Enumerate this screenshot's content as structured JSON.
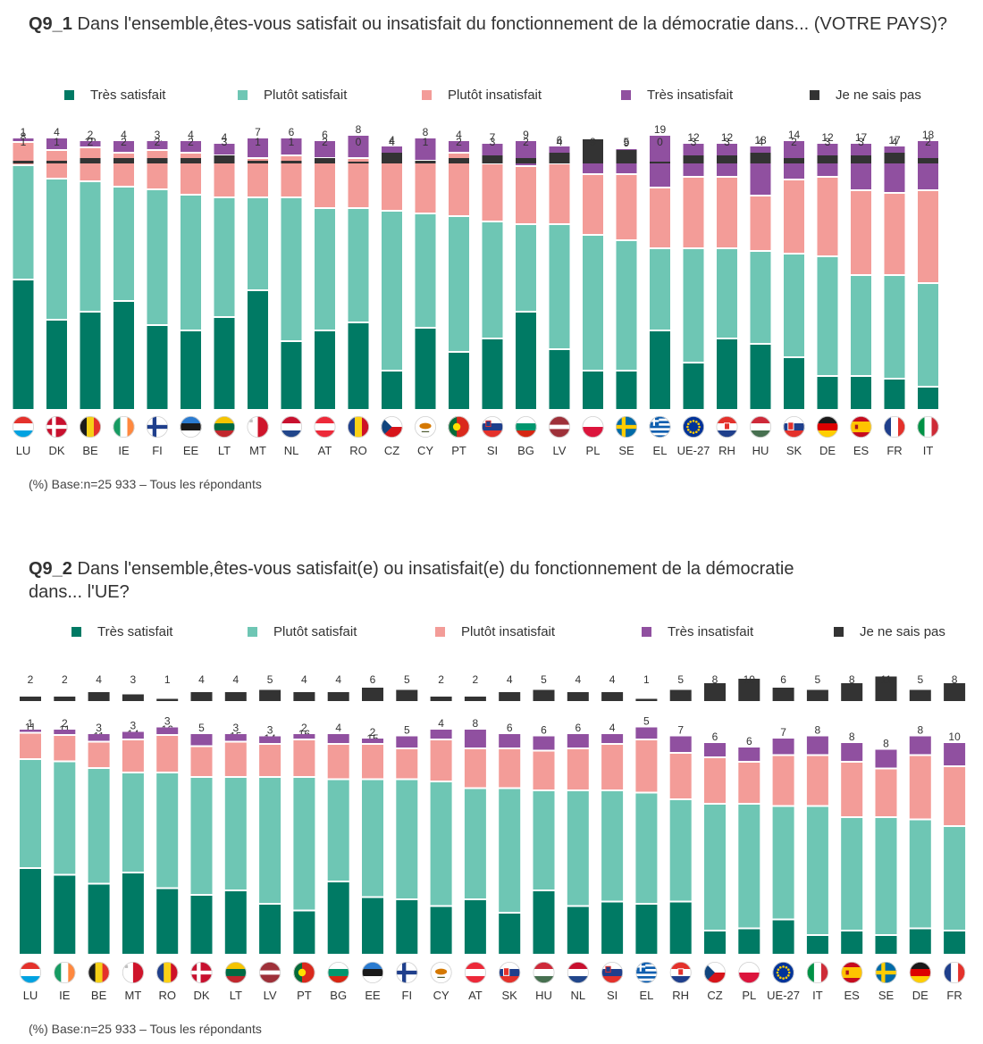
{
  "colors": {
    "tres_satisfait": "#007a64",
    "plutot_satisfait": "#6ec6b4",
    "plutot_insatisfait": "#f39c98",
    "tres_insatisfait": "#9050a0",
    "ne_sais_pas": "#333333"
  },
  "legend": [
    "Très satisfait",
    "Plutôt satisfait",
    "Plutôt insatisfait",
    "Très insatisfait",
    "Je ne sais pas"
  ],
  "chart_data": [
    {
      "type": "bar",
      "stacked": true,
      "title_code": "Q9_1",
      "title": "Dans l'ensemble,êtes-vous satisfait ou insatisfait du fonctionnement de la démocratie dans... (VOTRE PAYS)?",
      "note": "(%) Base:n=25 933 – Tous les répondants",
      "categories": [
        "LU",
        "DK",
        "BE",
        "IE",
        "FI",
        "EE",
        "LT",
        "MT",
        "NL",
        "AT",
        "RO",
        "CZ",
        "CY",
        "PT",
        "SI",
        "BG",
        "LV",
        "PL",
        "SE",
        "EL",
        "UE-27",
        "RH",
        "HU",
        "SK",
        "DE",
        "ES",
        "FR",
        "IT"
      ],
      "series": [
        {
          "name": "Très satisfait",
          "values": [
            48,
            33,
            36,
            40,
            31,
            29,
            34,
            44,
            25,
            29,
            32,
            14,
            30,
            21,
            26,
            36,
            22,
            14,
            14,
            29,
            17,
            26,
            24,
            19,
            12,
            12,
            11,
            8
          ]
        },
        {
          "name": "Plutôt satisfait",
          "values": [
            42,
            52,
            48,
            42,
            50,
            50,
            44,
            34,
            53,
            45,
            42,
            59,
            42,
            50,
            43,
            32,
            46,
            50,
            48,
            30,
            42,
            33,
            34,
            38,
            44,
            37,
            38,
            38
          ]
        },
        {
          "name": "Plutôt insatisfait",
          "values": [
            8,
            10,
            12,
            12,
            14,
            15,
            15,
            14,
            15,
            18,
            18,
            19,
            19,
            23,
            21,
            21,
            22,
            22,
            24,
            22,
            26,
            26,
            20,
            27,
            29,
            31,
            30,
            34
          ]
        },
        {
          "name": "Très insatisfait",
          "values": [
            1,
            4,
            2,
            4,
            3,
            4,
            4,
            7,
            6,
            6,
            8,
            4,
            8,
            4,
            7,
            9,
            6,
            5,
            9,
            19,
            12,
            12,
            18,
            14,
            12,
            17,
            17,
            18
          ]
        },
        {
          "name": "Je ne sais pas",
          "values": [
            1,
            1,
            2,
            2,
            2,
            2,
            3,
            1,
            1,
            2,
            0,
            4,
            1,
            2,
            3,
            2,
            4,
            9,
            5,
            0,
            3,
            3,
            4,
            2,
            3,
            3,
            4,
            2
          ]
        }
      ]
    },
    {
      "type": "bar",
      "stacked": true,
      "title_code": "Q9_2",
      "title": "Dans l'ensemble,êtes-vous satisfait(e) ou insatisfait(e) du fonctionnement de la démocratie dans... l'UE?",
      "note": "(%) Base:n=25 933 – Tous les répondants",
      "categories": [
        "LU",
        "IE",
        "BE",
        "MT",
        "RO",
        "DK",
        "LT",
        "LV",
        "PT",
        "BG",
        "EE",
        "FI",
        "CY",
        "AT",
        "SK",
        "HU",
        "NL",
        "SI",
        "EL",
        "RH",
        "CZ",
        "PL",
        "UE-27",
        "IT",
        "ES",
        "SE",
        "DE",
        "FR"
      ],
      "series": [
        {
          "name": "Très satisfait",
          "values": [
            38,
            35,
            31,
            36,
            29,
            26,
            28,
            22,
            19,
            32,
            25,
            24,
            21,
            24,
            18,
            28,
            21,
            23,
            22,
            23,
            10,
            11,
            15,
            8,
            10,
            8,
            11,
            10
          ]
        },
        {
          "name": "Plutôt satisfait",
          "values": [
            48,
            50,
            51,
            44,
            51,
            52,
            50,
            56,
            59,
            45,
            52,
            53,
            55,
            49,
            55,
            44,
            51,
            49,
            49,
            45,
            56,
            55,
            50,
            57,
            50,
            52,
            48,
            46
          ]
        },
        {
          "name": "Plutôt insatisfait",
          "values": [
            11,
            11,
            11,
            14,
            16,
            13,
            15,
            14,
            16,
            15,
            15,
            13,
            18,
            17,
            17,
            17,
            18,
            20,
            23,
            20,
            20,
            18,
            22,
            22,
            24,
            21,
            28,
            26
          ]
        },
        {
          "name": "Très insatisfait",
          "values": [
            1,
            2,
            3,
            3,
            3,
            5,
            3,
            3,
            2,
            4,
            2,
            5,
            4,
            8,
            6,
            6,
            6,
            4,
            5,
            7,
            6,
            6,
            7,
            8,
            8,
            8,
            8,
            10
          ]
        },
        {
          "name": "Je ne sais pas",
          "values": [
            2,
            2,
            4,
            3,
            1,
            4,
            4,
            5,
            4,
            4,
            6,
            5,
            2,
            2,
            4,
            5,
            4,
            4,
            1,
            5,
            8,
            10,
            6,
            5,
            8,
            11,
            5,
            8
          ]
        }
      ]
    }
  ]
}
